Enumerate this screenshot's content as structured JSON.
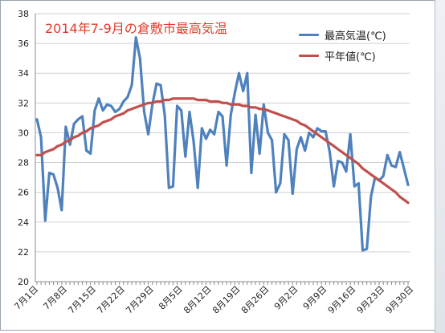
{
  "chart_data": {
    "type": "line",
    "title": "2014年7-9月の倉敷市最高気温",
    "xlabel": "",
    "ylabel": "",
    "ylim": [
      20,
      38
    ],
    "yticks": [
      20,
      22,
      24,
      26,
      28,
      30,
      32,
      34,
      36,
      38
    ],
    "x_tick_labels": [
      "7月1日",
      "7月8日",
      "7月15日",
      "7月22日",
      "7月29日",
      "8月5日",
      "8月12日",
      "8月19日",
      "8月26日",
      "9月2日",
      "9月9日",
      "9月16日",
      "9月23日",
      "9月30日"
    ],
    "grid": "horizontal",
    "legend_position": "top-right",
    "series": [
      {
        "name": "最高気温(℃)",
        "color": "#4f81bd",
        "values": [
          30.9,
          29.7,
          24.1,
          27.3,
          27.2,
          26.3,
          24.8,
          30.4,
          29.2,
          30.6,
          30.9,
          31.1,
          28.8,
          28.6,
          31.5,
          32.3,
          31.5,
          31.9,
          31.8,
          31.4,
          31.6,
          32.1,
          32.4,
          33.2,
          36.4,
          35.0,
          31.4,
          29.9,
          31.9,
          33.3,
          33.2,
          31.2,
          26.3,
          26.4,
          31.8,
          31.5,
          28.4,
          31.4,
          29.4,
          26.3,
          30.3,
          29.6,
          30.2,
          29.9,
          31.4,
          31.1,
          27.8,
          31.2,
          32.7,
          34.0,
          32.8,
          34.0,
          27.3,
          31.2,
          28.6,
          31.9,
          30.0,
          29.5,
          26.0,
          26.6,
          29.9,
          29.5,
          25.9,
          28.9,
          29.7,
          28.8,
          30.0,
          29.7,
          30.3,
          30.1,
          30.1,
          28.7,
          26.4,
          28.1,
          28.0,
          27.4,
          29.9,
          26.4,
          26.6,
          22.1,
          22.2,
          25.7,
          27.0,
          26.8,
          27.1,
          28.5,
          27.8,
          27.7,
          28.7,
          27.6,
          26.5
        ],
        "style": "jagged"
      },
      {
        "name": "平年値(℃)",
        "color": "#c0504d",
        "values": [
          28.5,
          28.5,
          28.7,
          28.8,
          28.9,
          29.1,
          29.2,
          29.4,
          29.5,
          29.7,
          29.8,
          30.0,
          30.1,
          30.3,
          30.4,
          30.5,
          30.7,
          30.8,
          30.9,
          31.1,
          31.2,
          31.3,
          31.5,
          31.6,
          31.7,
          31.8,
          31.9,
          32.0,
          32.0,
          32.1,
          32.1,
          32.2,
          32.2,
          32.3,
          32.3,
          32.3,
          32.3,
          32.3,
          32.3,
          32.2,
          32.2,
          32.2,
          32.1,
          32.1,
          32.1,
          32.0,
          32.0,
          31.9,
          31.9,
          31.9,
          31.8,
          31.8,
          31.7,
          31.7,
          31.6,
          31.6,
          31.5,
          31.4,
          31.3,
          31.2,
          31.1,
          31.0,
          30.9,
          30.8,
          30.6,
          30.5,
          30.3,
          30.1,
          29.9,
          29.7,
          29.5,
          29.3,
          29.1,
          28.9,
          28.7,
          28.5,
          28.3,
          28.1,
          27.9,
          27.6,
          27.4,
          27.2,
          27.0,
          26.8,
          26.6,
          26.4,
          26.2,
          26.0,
          25.7,
          25.5,
          25.3
        ],
        "style": "smooth"
      }
    ]
  }
}
